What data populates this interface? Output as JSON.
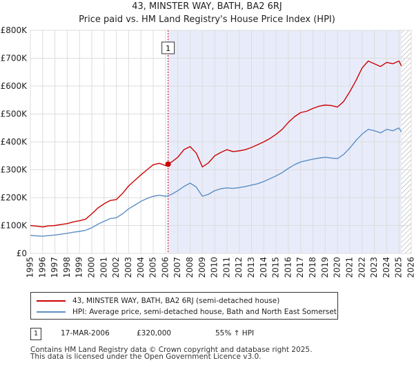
{
  "chart_data": {
    "type": "line",
    "title": "43, MINSTER WAY, BATH, BA2 6RJ",
    "subtitle": "Price paid vs. HM Land Registry's House Price Index (HPI)",
    "xlim": [
      1995,
      2026
    ],
    "ylim": [
      0,
      800000
    ],
    "x_ticks": [
      1995,
      1996,
      1997,
      1998,
      1999,
      2000,
      2001,
      2002,
      2003,
      2004,
      2005,
      2006,
      2007,
      2008,
      2009,
      2010,
      2011,
      2012,
      2013,
      2014,
      2015,
      2016,
      2017,
      2018,
      2019,
      2020,
      2021,
      2022,
      2023,
      2024,
      2025,
      2026
    ],
    "y_ticks": [
      {
        "value": 0,
        "label": "£0"
      },
      {
        "value": 100000,
        "label": "£100K"
      },
      {
        "value": 200000,
        "label": "£200K"
      },
      {
        "value": 300000,
        "label": "£300K"
      },
      {
        "value": 400000,
        "label": "£400K"
      },
      {
        "value": 500000,
        "label": "£500K"
      },
      {
        "value": 600000,
        "label": "£600K"
      },
      {
        "value": 700000,
        "label": "£700K"
      },
      {
        "value": 800000,
        "label": "£800K"
      }
    ],
    "grid": true,
    "shaded_region": {
      "from": 2006.21,
      "to": 2025.2
    },
    "future_hatch_from": 2025.2,
    "series": [
      {
        "name": "43, MINSTER WAY, BATH, BA2 6RJ (semi-detached house)",
        "color": "#cc0000",
        "points": [
          [
            1995.0,
            100000
          ],
          [
            1995.5,
            98000
          ],
          [
            1996.0,
            95000
          ],
          [
            1996.5,
            99000
          ],
          [
            1997.0,
            100000
          ],
          [
            1997.5,
            104000
          ],
          [
            1998.0,
            107000
          ],
          [
            1998.5,
            113000
          ],
          [
            1999.0,
            117000
          ],
          [
            1999.5,
            123000
          ],
          [
            2000.0,
            142000
          ],
          [
            2000.5,
            163000
          ],
          [
            2001.0,
            178000
          ],
          [
            2001.5,
            190000
          ],
          [
            2002.0,
            193000
          ],
          [
            2002.5,
            215000
          ],
          [
            2003.0,
            242000
          ],
          [
            2003.5,
            262000
          ],
          [
            2004.0,
            282000
          ],
          [
            2004.5,
            300000
          ],
          [
            2005.0,
            318000
          ],
          [
            2005.5,
            323000
          ],
          [
            2006.0,
            315000
          ],
          [
            2006.21,
            320000
          ],
          [
            2006.5,
            328000
          ],
          [
            2007.0,
            345000
          ],
          [
            2007.5,
            372000
          ],
          [
            2008.0,
            383000
          ],
          [
            2008.5,
            360000
          ],
          [
            2009.0,
            310000
          ],
          [
            2009.5,
            325000
          ],
          [
            2010.0,
            350000
          ],
          [
            2010.5,
            362000
          ],
          [
            2011.0,
            372000
          ],
          [
            2011.5,
            365000
          ],
          [
            2012.0,
            368000
          ],
          [
            2012.5,
            372000
          ],
          [
            2013.0,
            380000
          ],
          [
            2013.5,
            390000
          ],
          [
            2014.0,
            400000
          ],
          [
            2014.5,
            412000
          ],
          [
            2015.0,
            427000
          ],
          [
            2015.5,
            445000
          ],
          [
            2016.0,
            470000
          ],
          [
            2016.5,
            490000
          ],
          [
            2017.0,
            505000
          ],
          [
            2017.5,
            510000
          ],
          [
            2018.0,
            520000
          ],
          [
            2018.5,
            528000
          ],
          [
            2019.0,
            532000
          ],
          [
            2019.5,
            530000
          ],
          [
            2020.0,
            525000
          ],
          [
            2020.5,
            545000
          ],
          [
            2021.0,
            580000
          ],
          [
            2021.5,
            620000
          ],
          [
            2022.0,
            665000
          ],
          [
            2022.5,
            690000
          ],
          [
            2023.0,
            680000
          ],
          [
            2023.5,
            670000
          ],
          [
            2024.0,
            685000
          ],
          [
            2024.5,
            680000
          ],
          [
            2025.0,
            690000
          ],
          [
            2025.2,
            672000
          ]
        ]
      },
      {
        "name": "HPI: Average price, semi-detached house, Bath and North East Somerset",
        "color": "#5b8ec4",
        "points": [
          [
            1995.0,
            65000
          ],
          [
            1995.5,
            63000
          ],
          [
            1996.0,
            62000
          ],
          [
            1996.5,
            64000
          ],
          [
            1997.0,
            66000
          ],
          [
            1997.5,
            69000
          ],
          [
            1998.0,
            72000
          ],
          [
            1998.5,
            76000
          ],
          [
            1999.0,
            79000
          ],
          [
            1999.5,
            83000
          ],
          [
            2000.0,
            92000
          ],
          [
            2000.5,
            105000
          ],
          [
            2001.0,
            115000
          ],
          [
            2001.5,
            125000
          ],
          [
            2002.0,
            128000
          ],
          [
            2002.5,
            142000
          ],
          [
            2003.0,
            160000
          ],
          [
            2003.5,
            173000
          ],
          [
            2004.0,
            187000
          ],
          [
            2004.5,
            197000
          ],
          [
            2005.0,
            205000
          ],
          [
            2005.5,
            209000
          ],
          [
            2006.0,
            205000
          ],
          [
            2006.21,
            207000
          ],
          [
            2006.5,
            212000
          ],
          [
            2007.0,
            225000
          ],
          [
            2007.5,
            240000
          ],
          [
            2008.0,
            252000
          ],
          [
            2008.5,
            238000
          ],
          [
            2009.0,
            205000
          ],
          [
            2009.5,
            212000
          ],
          [
            2010.0,
            225000
          ],
          [
            2010.5,
            232000
          ],
          [
            2011.0,
            235000
          ],
          [
            2011.5,
            233000
          ],
          [
            2012.0,
            236000
          ],
          [
            2012.5,
            240000
          ],
          [
            2013.0,
            245000
          ],
          [
            2013.5,
            250000
          ],
          [
            2014.0,
            258000
          ],
          [
            2014.5,
            268000
          ],
          [
            2015.0,
            278000
          ],
          [
            2015.5,
            290000
          ],
          [
            2016.0,
            305000
          ],
          [
            2016.5,
            318000
          ],
          [
            2017.0,
            328000
          ],
          [
            2017.5,
            333000
          ],
          [
            2018.0,
            338000
          ],
          [
            2018.5,
            342000
          ],
          [
            2019.0,
            345000
          ],
          [
            2019.5,
            342000
          ],
          [
            2020.0,
            340000
          ],
          [
            2020.5,
            355000
          ],
          [
            2021.0,
            378000
          ],
          [
            2021.5,
            405000
          ],
          [
            2022.0,
            428000
          ],
          [
            2022.5,
            445000
          ],
          [
            2023.0,
            440000
          ],
          [
            2023.5,
            432000
          ],
          [
            2024.0,
            445000
          ],
          [
            2024.5,
            440000
          ],
          [
            2025.0,
            450000
          ],
          [
            2025.2,
            435000
          ]
        ]
      }
    ],
    "sale_marker": {
      "label": "1",
      "x": 2006.21,
      "y": 320000
    }
  },
  "legend": {
    "property_label": "43, MINSTER WAY, BATH, BA2 6RJ (semi-detached house)",
    "hpi_label": "HPI: Average price, semi-detached house, Bath and North East Somerset",
    "property_color": "#cc0000",
    "hpi_color": "#5b8ec4"
  },
  "sale": {
    "number": "1",
    "date": "17-MAR-2006",
    "price": "£320,000",
    "hpi_change": "55% ↑ HPI"
  },
  "footer": {
    "line1": "Contains HM Land Registry data © Crown copyright and database right 2025.",
    "line2": "This data is licensed under the Open Government Licence v3.0."
  }
}
